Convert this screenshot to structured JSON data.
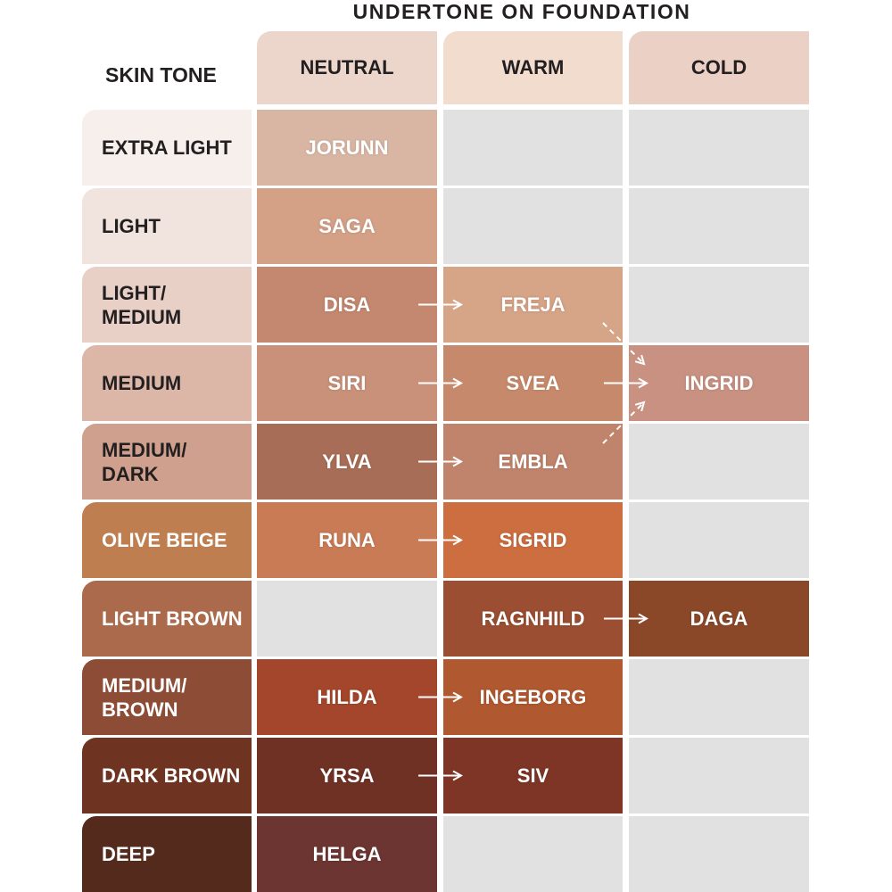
{
  "header": {
    "title": "UNDERTONE ON FOUNDATION",
    "row_label": "SKIN TONE"
  },
  "columns": [
    "NEUTRAL",
    "WARM",
    "COLD"
  ],
  "rows": [
    {
      "label": "EXTRA LIGHT",
      "cells": [
        "JORUNN",
        null,
        null
      ]
    },
    {
      "label": "LIGHT",
      "cells": [
        "SAGA",
        null,
        null
      ]
    },
    {
      "label": "LIGHT/\nMEDIUM",
      "cells": [
        "DISA",
        "FREJA",
        null
      ]
    },
    {
      "label": "MEDIUM",
      "cells": [
        "SIRI",
        "SVEA",
        "INGRID"
      ]
    },
    {
      "label": "MEDIUM/\nDARK",
      "cells": [
        "YLVA",
        "EMBLA",
        null
      ]
    },
    {
      "label": "OLIVE BEIGE",
      "cells": [
        "RUNA",
        "SIGRID",
        null
      ]
    },
    {
      "label": "LIGHT BROWN",
      "cells": [
        null,
        "RAGNHILD",
        "DAGA"
      ]
    },
    {
      "label": "MEDIUM/\nBROWN",
      "cells": [
        "HILDA",
        "INGEBORG",
        null
      ]
    },
    {
      "label": "DARK BROWN",
      "cells": [
        "YRSA",
        "SIV",
        null
      ]
    },
    {
      "label": "DEEP",
      "cells": [
        "HELGA",
        null,
        null
      ]
    }
  ]
}
